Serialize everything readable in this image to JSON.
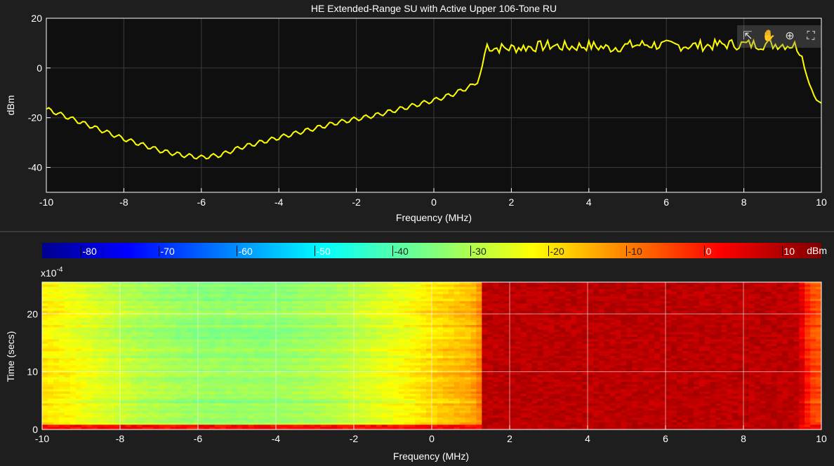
{
  "chart_data": [
    {
      "type": "line",
      "title": "HE Extended-Range SU with Active Upper 106-Tone RU",
      "xlabel": "Frequency (MHz)",
      "ylabel": "dBm",
      "xlim": [
        -10,
        10
      ],
      "ylim": [
        -50,
        20
      ],
      "xticks": [
        -10,
        -8,
        -6,
        -4,
        -2,
        0,
        2,
        4,
        6,
        8,
        10
      ],
      "yticks": [
        -40,
        -20,
        0,
        20
      ],
      "grid": true,
      "line_color": "#ffff00",
      "series": [
        {
          "x": [
            -10,
            -9.5,
            -9,
            -8.5,
            -8,
            -7.5,
            -7,
            -6.5,
            -6,
            -5.5,
            -5,
            -4.5,
            -4,
            -3.5,
            -3,
            -2.5,
            -2,
            -1.5,
            -1,
            -0.5,
            0,
            0.5,
            1,
            1.15,
            1.25,
            1.35,
            1.5,
            2,
            2.5,
            3,
            3.5,
            4,
            4.5,
            5,
            5.5,
            6,
            6.5,
            7,
            7.5,
            8,
            8.5,
            9,
            9.35,
            9.5,
            9.7,
            10
          ],
          "y": [
            -16.5,
            -19.5,
            -22.5,
            -25.5,
            -28.5,
            -31,
            -33.5,
            -35,
            -36,
            -35,
            -32,
            -30,
            -28,
            -26,
            -24,
            -22,
            -20.5,
            -19,
            -17,
            -15,
            -13,
            -10.5,
            -7,
            -5,
            0,
            9.5,
            8,
            8,
            8.5,
            9,
            8.5,
            9,
            8,
            9,
            9.5,
            9,
            9,
            9,
            9.5,
            9.5,
            9.5,
            9.5,
            9,
            5,
            -8,
            -15
          ]
        }
      ]
    },
    {
      "type": "heatmap",
      "xlabel": "Frequency (MHz)",
      "ylabel": "Time (secs)",
      "y_multiplier": "x10",
      "y_exponent": "-4",
      "xlim": [
        -10,
        10
      ],
      "ylim": [
        0,
        25.5
      ],
      "xticks": [
        -10,
        -8,
        -6,
        -4,
        -2,
        0,
        2,
        4,
        6,
        8,
        10
      ],
      "yticks": [
        0,
        10,
        20
      ],
      "grid": true,
      "colorbar": {
        "label": "dBm",
        "range": [
          -85,
          15
        ],
        "ticks": [
          -80,
          -70,
          -60,
          -50,
          -40,
          -30,
          -20,
          -10,
          0,
          10
        ]
      },
      "profile": {
        "x": [
          -10,
          -9.5,
          -9,
          -8.5,
          -8,
          -7.5,
          -7,
          -6.5,
          -6,
          -5.5,
          -5,
          -4.5,
          -4,
          -3.5,
          -3,
          -2.5,
          -2,
          -1.5,
          -1,
          -0.5,
          0,
          0.5,
          1,
          1.15,
          1.25,
          1.35,
          1.5,
          2,
          2.5,
          3,
          3.5,
          4,
          4.5,
          5,
          5.5,
          6,
          6.5,
          7,
          7.5,
          8,
          8.5,
          9,
          9.35,
          9.5,
          9.7,
          10
        ],
        "y": [
          -20,
          -22,
          -24,
          -26,
          -28,
          -30,
          -31,
          -32,
          -33,
          -33,
          -33,
          -33,
          -33,
          -32,
          -31,
          -30,
          -28,
          -26,
          -24,
          -22,
          -19,
          -17,
          -15,
          -13,
          -10,
          9,
          9,
          9,
          9,
          9,
          9,
          9,
          9,
          9,
          9,
          9,
          9,
          9,
          9,
          9,
          9,
          9,
          9,
          5,
          -4,
          -6
        ]
      }
    }
  ],
  "toolbar": {
    "export_icon": "export-icon",
    "pan_icon": "pan-hand-icon",
    "zoom_icon": "zoom-in-icon",
    "restore_icon": "restore-view-icon"
  }
}
